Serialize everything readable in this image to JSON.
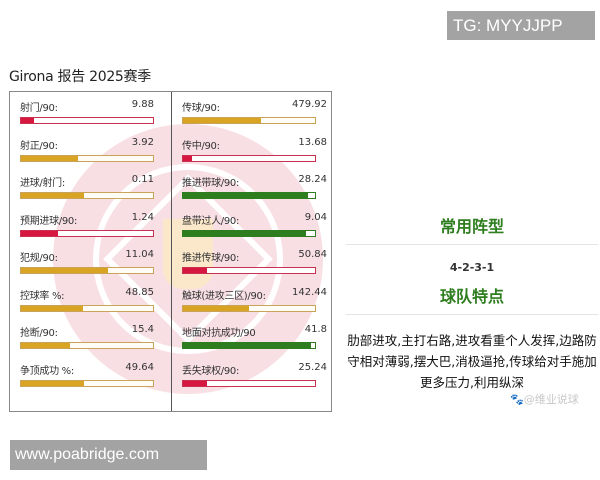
{
  "badge": {
    "text": "TG: MYYJJPP"
  },
  "title": "Girona 报告 2025赛季",
  "stats": {
    "left": [
      {
        "label": "射门/90:",
        "value": "9.88",
        "fill_pct": 10,
        "color": "red"
      },
      {
        "label": "射正/90:",
        "value": "3.92",
        "fill_pct": 43,
        "color": "gold"
      },
      {
        "label": "进球/射门:",
        "value": "0.11",
        "fill_pct": 48,
        "color": "gold"
      },
      {
        "label": "预期进球/90:",
        "value": "1.24",
        "fill_pct": 28,
        "color": "red"
      },
      {
        "label": "犯规/90:",
        "value": "11.04",
        "fill_pct": 66,
        "color": "gold"
      },
      {
        "label": "控球率 %:",
        "value": "48.85",
        "fill_pct": 47,
        "color": "gold"
      },
      {
        "label": "抢断/90:",
        "value": "15.4",
        "fill_pct": 37,
        "color": "gold"
      },
      {
        "label": "争顶成功 %:",
        "value": "49.64",
        "fill_pct": 48,
        "color": "gold"
      }
    ],
    "right": [
      {
        "label": "传球/90:",
        "value": "479.92",
        "fill_pct": 59,
        "color": "gold"
      },
      {
        "label": "传中/90:",
        "value": "13.68",
        "fill_pct": 7,
        "color": "red"
      },
      {
        "label": "推进带球/90:",
        "value": "28.24",
        "fill_pct": 95,
        "color": "green"
      },
      {
        "label": "盘带过人/90:",
        "value": "9.04",
        "fill_pct": 93,
        "color": "green"
      },
      {
        "label": "推进传球/90:",
        "value": "50.84",
        "fill_pct": 18,
        "color": "red"
      },
      {
        "label": "触球(进攻三区)/90:",
        "value": "142.44",
        "fill_pct": 50,
        "color": "gold"
      },
      {
        "label": "地面对抗成功/90",
        "value": "41.8",
        "fill_pct": 97,
        "color": "green"
      },
      {
        "label": "丢失球权/90:",
        "value": "25.24",
        "fill_pct": 18,
        "color": "red"
      }
    ]
  },
  "side": {
    "formation_heading": "常用阵型",
    "formation": "4-2-3-1",
    "traits_heading": "球队特点",
    "traits": "肋部进攻,主打右路,进攻看重个人发挥,边路防守相对薄弱,摆大巴,消极逼抢,传球给对手施加更多压力,利用纵深"
  },
  "credit": "🐾@维业说球",
  "site": "www.poabridge.com",
  "colors": {
    "gold": "#d9a424",
    "red": "#d6173f",
    "green": "#2e7d1e",
    "heading_green": "#2e7d1e"
  }
}
